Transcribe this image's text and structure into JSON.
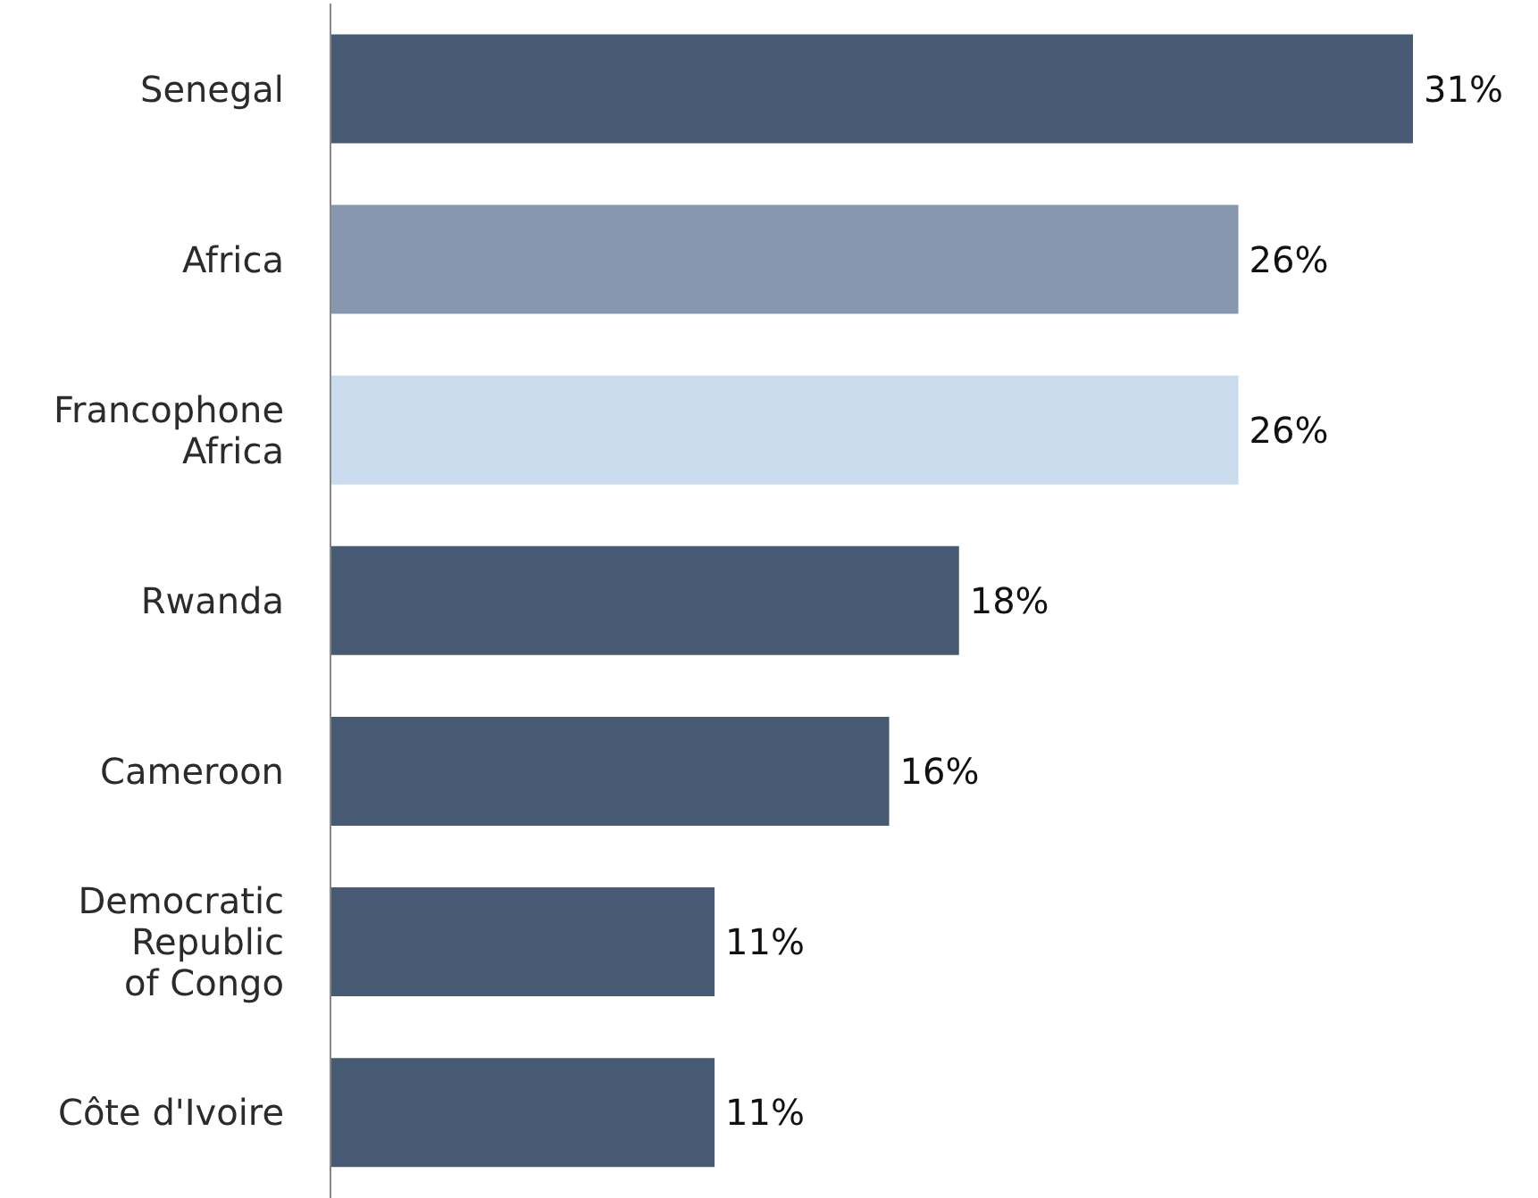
{
  "chart_data": {
    "type": "bar",
    "orientation": "horizontal",
    "data_labels": true,
    "categories": [
      "Senegal",
      "Africa",
      "Francophone Africa",
      "Rwanda",
      "Cameroon",
      "Democratic Republic of Congo",
      "Côte d'Ivoire"
    ],
    "values": [
      31,
      26,
      26,
      18,
      16,
      11,
      11
    ],
    "colors": [
      "#465a73",
      "#8797b0",
      "#c9dbec",
      "#465a73",
      "#465a73",
      "#465a73",
      "#465a73"
    ],
    "value_labels": [
      "31%",
      "26%",
      "26%",
      "18%",
      "16%",
      "11%",
      "11%"
    ]
  }
}
